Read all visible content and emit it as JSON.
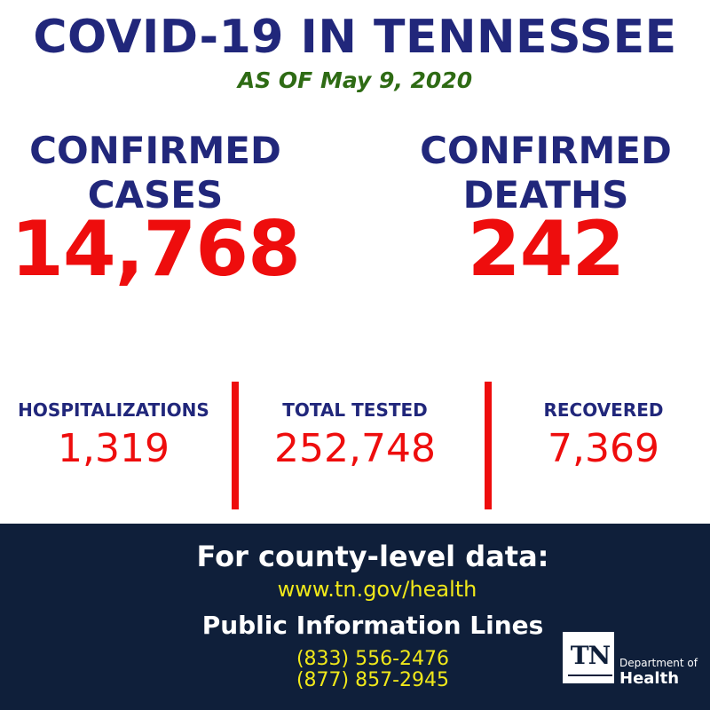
{
  "header": {
    "title": "COVID-19 IN TENNESSEE",
    "subtitle": "AS OF May 9, 2020"
  },
  "headline_stats": [
    {
      "label_line1": "CONFIRMED",
      "label_line2": "CASES",
      "value": "14,768"
    },
    {
      "label_line1": "CONFIRMED",
      "label_line2": "DEATHS",
      "value": "242"
    }
  ],
  "secondary_stats": [
    {
      "label": "HOSPITALIZATIONS",
      "value": "1,319"
    },
    {
      "label": "TOTAL TESTED",
      "value": "252,748"
    },
    {
      "label": "RECOVERED",
      "value": "7,369"
    }
  ],
  "footer": {
    "heading": "For county-level data:",
    "url": "www.tn.gov/health",
    "phone_heading": "Public Information Lines",
    "phones": [
      "(833) 556-2476",
      "(877) 857-2945"
    ]
  },
  "logo": {
    "mark_text": "TN",
    "department": "Department of",
    "name": "Health"
  },
  "colors": {
    "title_blue": "#21277b",
    "date_green": "#2e6b14",
    "value_red": "#ee0d0d",
    "footer_navy": "#0f1f3a",
    "footer_yellow": "#f0e81a"
  }
}
